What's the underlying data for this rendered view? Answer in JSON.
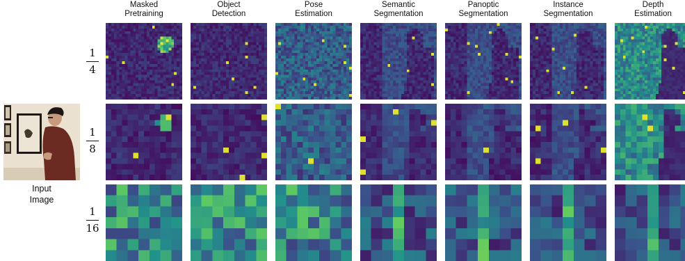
{
  "input_label": "Input\nImage",
  "columns": [
    "Masked\nPretraining",
    "Object\nDetection",
    "Pose\nEstimation",
    "Semantic\nSegmentation",
    "Panoptic\nSegmentation",
    "Instance\nSegmentation",
    "Depth\nEstimation"
  ],
  "rows": [
    {
      "num": "1",
      "den": "4",
      "grid": 28
    },
    {
      "num": "1",
      "den": "8",
      "grid": 14
    },
    {
      "num": "1",
      "den": "16",
      "grid": 7
    }
  ],
  "colors": {
    "viridis_dark": "#440154",
    "viridis_mid": "#21918c",
    "viridis_bright": "#fde725",
    "wall": "#e6dccb",
    "shirt": "#6b2b22"
  }
}
